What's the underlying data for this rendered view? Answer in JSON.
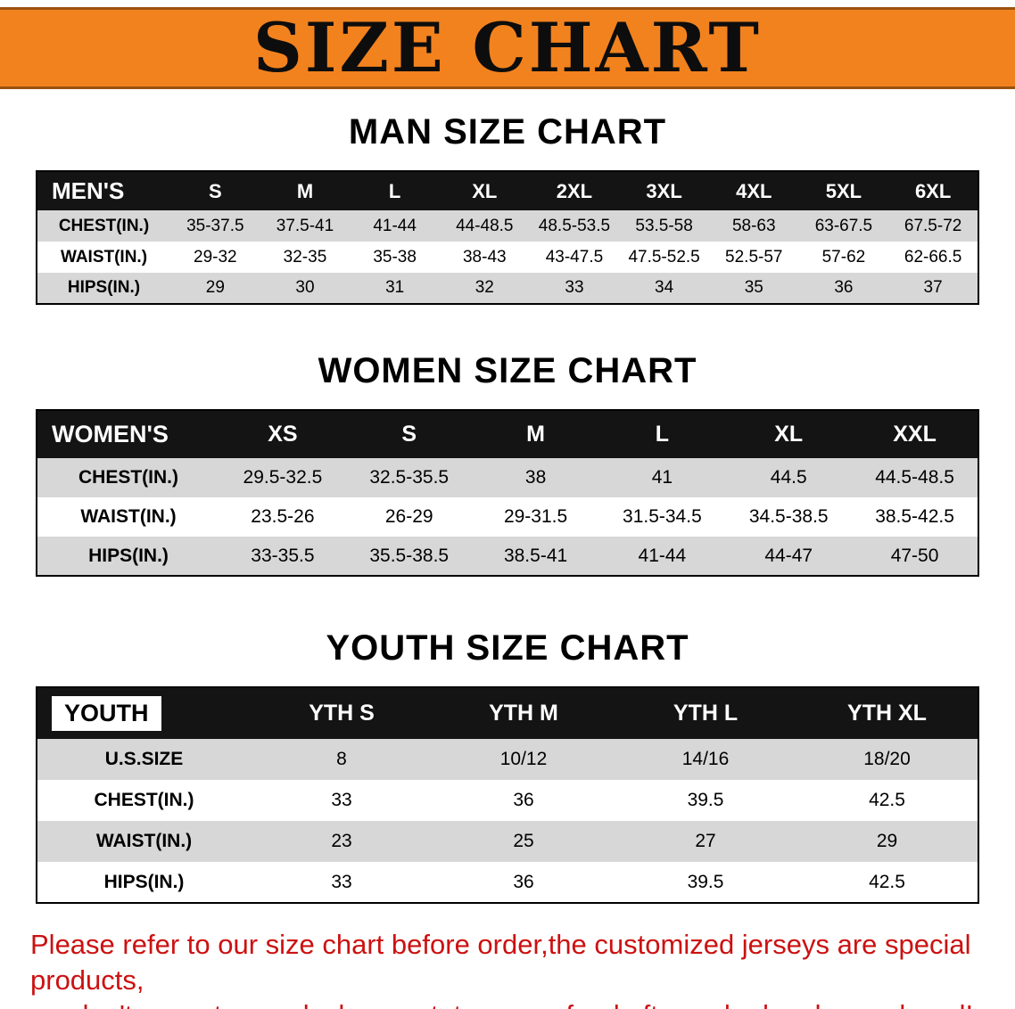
{
  "banner": {
    "title": "SIZE CHART"
  },
  "colors": {
    "banner_orange": "#f2821e",
    "table_header_black": "#141414",
    "row_gray": "#d7d7d7",
    "disclaimer_red": "#cc1111"
  },
  "sections": [
    {
      "heading": "MAN SIZE CHART",
      "table": {
        "header": [
          "MEN'S",
          "S",
          "M",
          "L",
          "XL",
          "2XL",
          "3XL",
          "4XL",
          "5XL",
          "6XL"
        ],
        "rows": [
          {
            "label": "CHEST(IN.)",
            "values": [
              "35-37.5",
              "37.5-41",
              "41-44",
              "44-48.5",
              "48.5-53.5",
              "53.5-58",
              "58-63",
              "63-67.5",
              "67.5-72"
            ]
          },
          {
            "label": "WAIST(IN.)",
            "values": [
              "29-32",
              "32-35",
              "35-38",
              "38-43",
              "43-47.5",
              "47.5-52.5",
              "52.5-57",
              "57-62",
              "62-66.5"
            ]
          },
          {
            "label": "HIPS(IN.)",
            "values": [
              "29",
              "30",
              "31",
              "32",
              "33",
              "34",
              "35",
              "36",
              "37"
            ]
          }
        ]
      }
    },
    {
      "heading": "WOMEN SIZE CHART",
      "table": {
        "header": [
          "WOMEN'S",
          "XS",
          "S",
          "M",
          "L",
          "XL",
          "XXL"
        ],
        "rows": [
          {
            "label": "CHEST(IN.)",
            "values": [
              "29.5-32.5",
              "32.5-35.5",
              "38",
              "41",
              "44.5",
              "44.5-48.5"
            ]
          },
          {
            "label": "WAIST(IN.)",
            "values": [
              "23.5-26",
              "26-29",
              "29-31.5",
              "31.5-34.5",
              "34.5-38.5",
              "38.5-42.5"
            ]
          },
          {
            "label": "HIPS(IN.)",
            "values": [
              "33-35.5",
              "35.5-38.5",
              "38.5-41",
              "41-44",
              "44-47",
              "47-50"
            ]
          }
        ]
      }
    },
    {
      "heading": "YOUTH SIZE CHART",
      "table": {
        "header": [
          "YOUTH",
          "YTH S",
          "YTH M",
          "YTH L",
          "YTH XL"
        ],
        "rows": [
          {
            "label": "U.S.SIZE",
            "values": [
              "8",
              "10/12",
              "14/16",
              "18/20"
            ]
          },
          {
            "label": "CHEST(IN.)",
            "values": [
              "33",
              "36",
              "39.5",
              "42.5"
            ]
          },
          {
            "label": "WAIST(IN.)",
            "values": [
              "23",
              "25",
              "27",
              "29"
            ]
          },
          {
            "label": "HIPS(IN.)",
            "values": [
              "33",
              "36",
              "39.5",
              "42.5"
            ]
          }
        ]
      }
    }
  ],
  "footer": {
    "line1": "Please refer to our size chart before order,the customized jerseys are special products,",
    "line2": "we don't accept cancel, change, teturn or refund after order has been placed!"
  }
}
